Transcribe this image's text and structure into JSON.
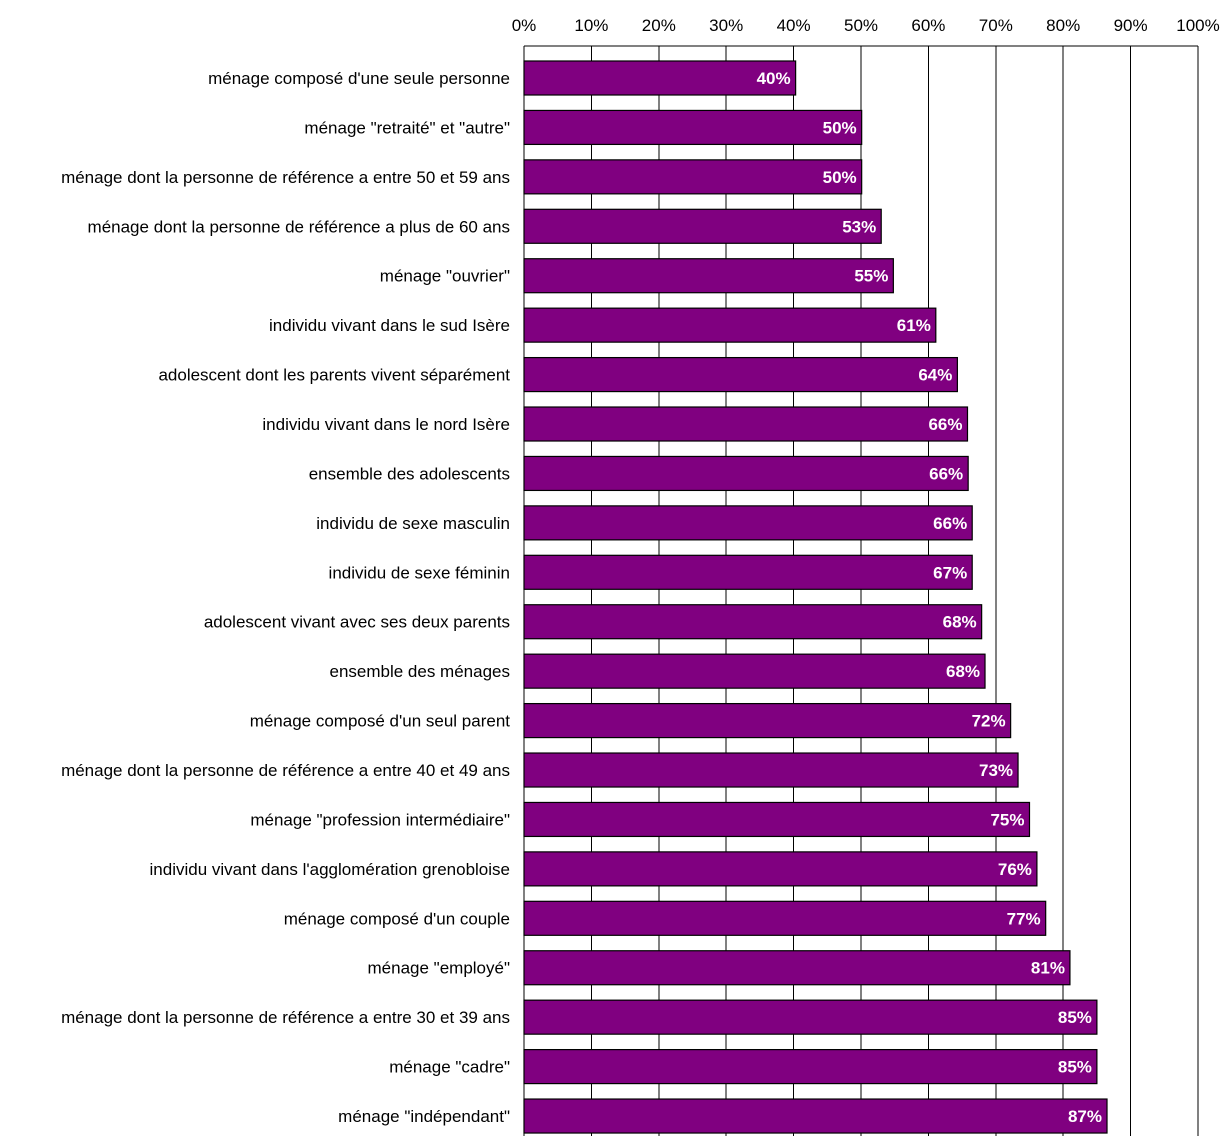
{
  "colors": {
    "bar": "#800080",
    "bar_stroke": "#000000",
    "grid": "#000000",
    "label": "#ffffff"
  },
  "chart_data": {
    "type": "bar",
    "orientation": "horizontal",
    "title": "",
    "xlabel": "",
    "ylabel": "",
    "xlim": [
      0,
      100
    ],
    "x_ticks": [
      "0%",
      "10%",
      "20%",
      "30%",
      "40%",
      "50%",
      "60%",
      "70%",
      "80%",
      "90%",
      "100%"
    ],
    "axis_position": "top",
    "grid": true,
    "categories": [
      "ménage composé d'une seule personne",
      "ménage \"retraité\" et \"autre\"",
      "ménage dont la personne de référence a entre 50 et 59 ans",
      "ménage dont la personne de référence a plus de 60 ans",
      "ménage \"ouvrier\"",
      "individu vivant dans le sud Isère",
      "adolescent dont les parents vivent séparément",
      "individu vivant dans le nord Isère",
      "ensemble des adolescents",
      "individu de sexe masculin",
      "individu de sexe féminin",
      "adolescent vivant avec ses deux parents",
      "ensemble des ménages",
      "ménage composé d'un seul parent",
      "ménage dont la personne de référence a entre 40 et 49 ans",
      "ménage \"profession intermédiaire\"",
      "individu vivant dans l'agglomération grenobloise",
      "ménage composé d'un couple",
      "ménage \"employé\"",
      "ménage dont la personne de référence a entre 30 et 39 ans",
      "ménage \"cadre\"",
      "ménage \"indépendant\""
    ],
    "values": [
      40.3,
      50.1,
      50.1,
      53.0,
      54.8,
      61.1,
      64.3,
      65.8,
      65.9,
      66.5,
      66.5,
      67.9,
      68.4,
      72.2,
      73.3,
      75.0,
      76.1,
      77.4,
      81.0,
      85.0,
      85.0,
      86.5
    ],
    "data_labels": [
      "40%",
      "50%",
      "50%",
      "53%",
      "55%",
      "61%",
      "64%",
      "66%",
      "66%",
      "66%",
      "67%",
      "68%",
      "68%",
      "72%",
      "73%",
      "75%",
      "76%",
      "77%",
      "81%",
      "85%",
      "85%",
      "87%"
    ]
  }
}
